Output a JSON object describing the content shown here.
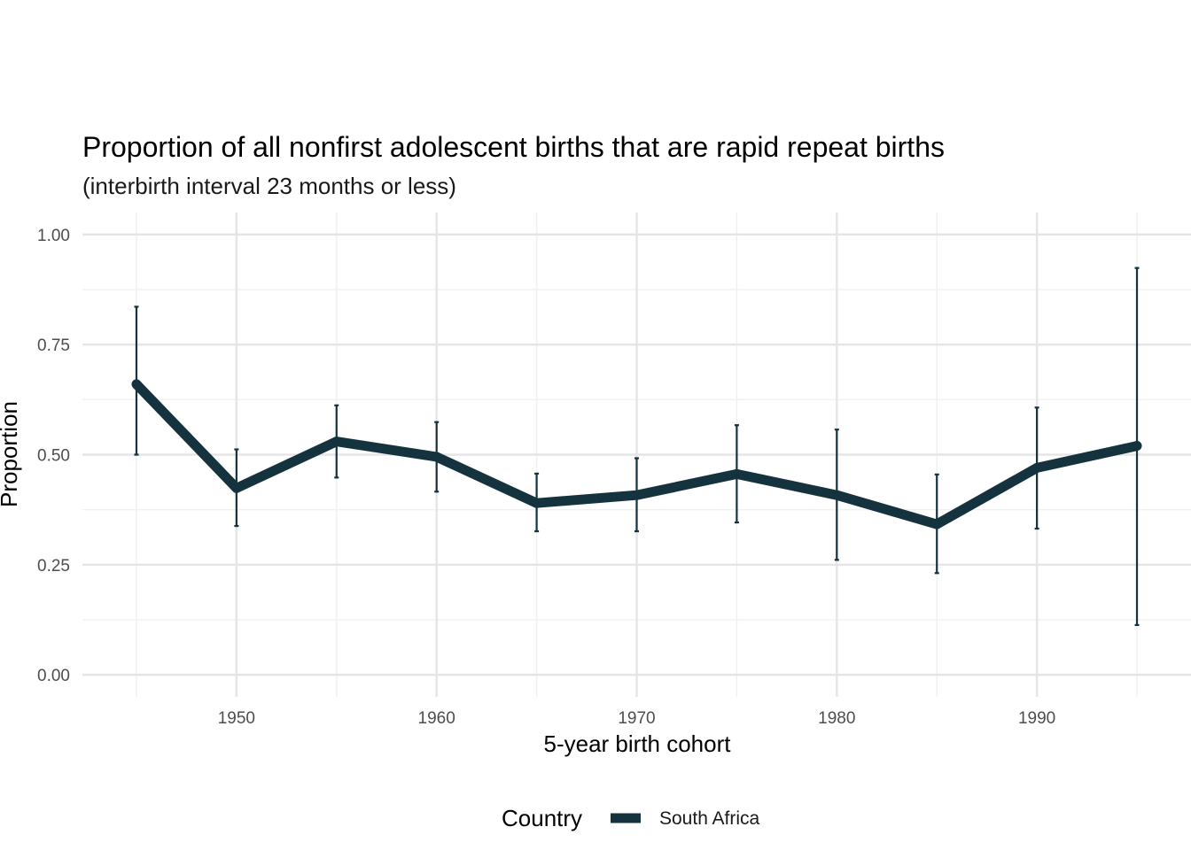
{
  "chart_data": {
    "type": "line",
    "title": "Proportion of all nonfirst adolescent births that are rapid repeat births",
    "subtitle": "(interbirth interval 23 months or less)",
    "xlabel": "5-year birth cohort",
    "ylabel": "Proportion",
    "xlim": [
      1942.3,
      1997.7
    ],
    "ylim": [
      -0.05,
      1.05
    ],
    "x_ticks": [
      1950,
      1960,
      1970,
      1980,
      1990
    ],
    "y_ticks": [
      0,
      0.25,
      0.5,
      0.75,
      1.0
    ],
    "y_tick_labels": [
      "0.00",
      "0.25",
      "0.50",
      "0.75",
      "1.00"
    ],
    "grid": true,
    "legend": {
      "title": "Country",
      "position": "bottom"
    },
    "series": [
      {
        "name": "South Africa",
        "color": "#14333e",
        "x": [
          1945,
          1950,
          1955,
          1960,
          1965,
          1970,
          1975,
          1980,
          1985,
          1990,
          1995
        ],
        "y": [
          0.66,
          0.424,
          0.53,
          0.495,
          0.39,
          0.408,
          0.456,
          0.408,
          0.342,
          0.47,
          0.52
        ],
        "lower": [
          0.5,
          0.338,
          0.448,
          0.416,
          0.326,
          0.326,
          0.346,
          0.261,
          0.231,
          0.332,
          0.113
        ],
        "upper": [
          0.836,
          0.512,
          0.612,
          0.574,
          0.457,
          0.492,
          0.567,
          0.557,
          0.455,
          0.607,
          0.924
        ]
      }
    ]
  }
}
